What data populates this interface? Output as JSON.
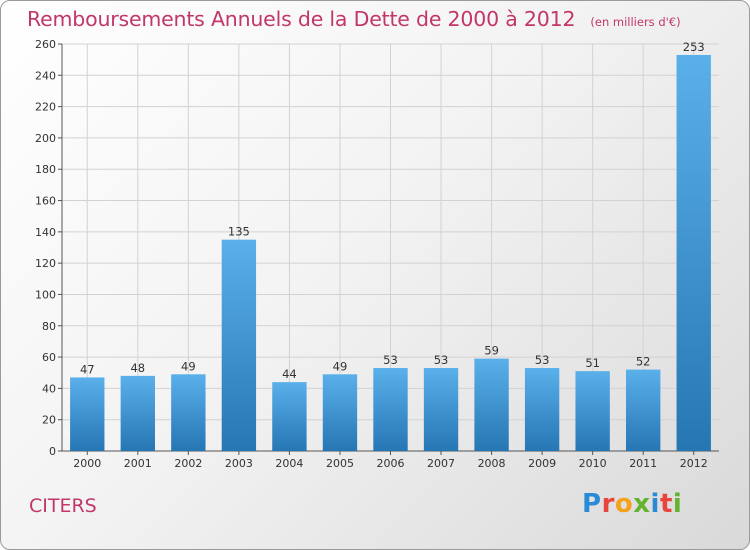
{
  "header": {
    "title": "Remboursements Annuels de la Dette de 2000 à 2012",
    "subtitle": "(en milliers d'€)"
  },
  "footer": {
    "commune": "CITERS",
    "logo": [
      "P",
      "r",
      "o",
      "x",
      "i",
      "t",
      "i"
    ],
    "logo_colors": [
      "#2a8ad6",
      "#e8453c",
      "#f3a21a",
      "#64b32d",
      "#2a8ad6",
      "#e8453c",
      "#64b32d"
    ]
  },
  "chart_data": {
    "type": "bar",
    "title": "Remboursements Annuels de la Dette de 2000 à 2012",
    "subtitle": "(en milliers d'€)",
    "categories": [
      "2000",
      "2001",
      "2002",
      "2003",
      "2004",
      "2005",
      "2006",
      "2007",
      "2008",
      "2009",
      "2010",
      "2011",
      "2012"
    ],
    "values": [
      47,
      48,
      49,
      135,
      44,
      49,
      53,
      53,
      59,
      53,
      51,
      52,
      253
    ],
    "ylim": [
      0,
      260
    ],
    "yticks": [
      0,
      20,
      40,
      60,
      80,
      100,
      120,
      140,
      160,
      180,
      200,
      220,
      240,
      260
    ],
    "grid": true,
    "bar_color_top": "#5ab0ea",
    "bar_color_bottom": "#2676b4",
    "title_color": "#c2366b"
  }
}
